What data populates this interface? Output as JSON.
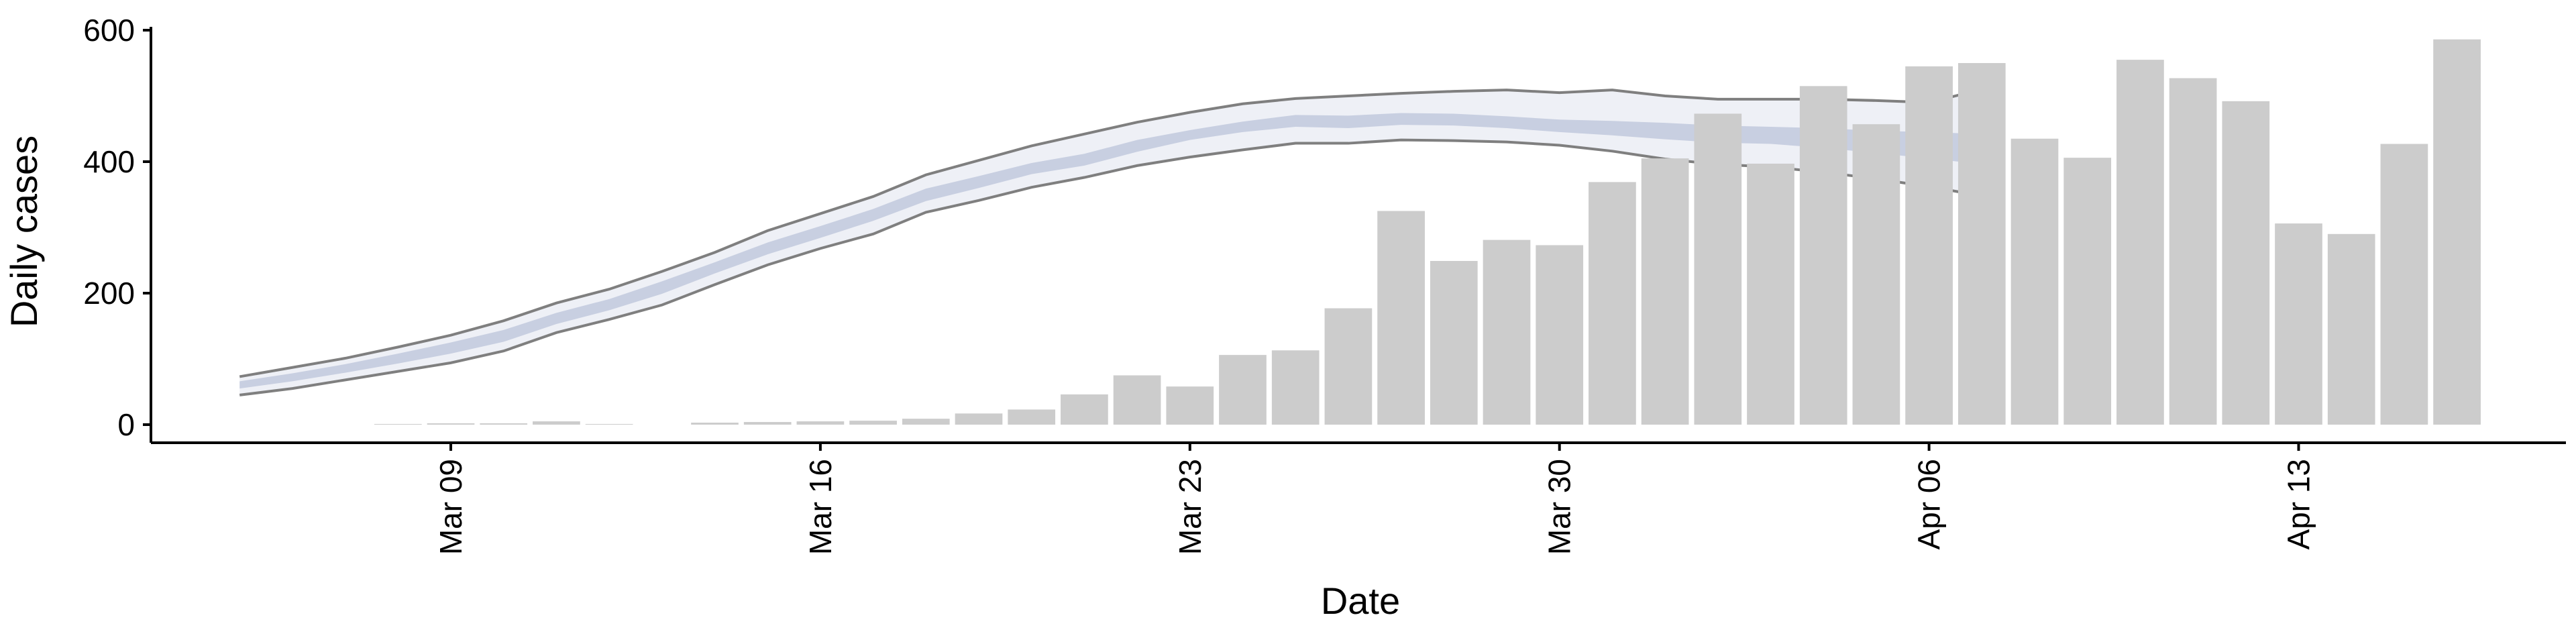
{
  "chart_data": {
    "type": "bar",
    "title": "",
    "xlabel": "Date",
    "ylabel": "Daily cases",
    "ylim": [
      0,
      600
    ],
    "y_ticks": [
      0,
      200,
      400,
      600
    ],
    "x_ticks": [
      {
        "date": "2020-03-09",
        "label": "Mar 09"
      },
      {
        "date": "2020-03-16",
        "label": "Mar 16"
      },
      {
        "date": "2020-03-23",
        "label": "Mar 23"
      },
      {
        "date": "2020-03-30",
        "label": "Mar 30"
      },
      {
        "date": "2020-04-06",
        "label": "Apr 06"
      },
      {
        "date": "2020-04-13",
        "label": "Apr 13"
      }
    ],
    "xlim": [
      "2020-03-02",
      "2020-04-20"
    ],
    "grid": false,
    "legend": "none",
    "colors": {
      "bars": "#cccccc",
      "band_outer": "#eef0f6",
      "band_inner": "#c8cfe1",
      "band_lines": "#7f7f7f",
      "axis": "#000000"
    },
    "series": [
      {
        "kind": "bar",
        "points": [
          {
            "x": "2020-03-08",
            "y": 1
          },
          {
            "x": "2020-03-09",
            "y": 2
          },
          {
            "x": "2020-03-10",
            "y": 2
          },
          {
            "x": "2020-03-11",
            "y": 5
          },
          {
            "x": "2020-03-12",
            "y": 1
          },
          {
            "x": "2020-03-13",
            "y": 0
          },
          {
            "x": "2020-03-14",
            "y": 3
          },
          {
            "x": "2020-03-15",
            "y": 4
          },
          {
            "x": "2020-03-16",
            "y": 5
          },
          {
            "x": "2020-03-17",
            "y": 6
          },
          {
            "x": "2020-03-18",
            "y": 9
          },
          {
            "x": "2020-03-19",
            "y": 17
          },
          {
            "x": "2020-03-20",
            "y": 23
          },
          {
            "x": "2020-03-21",
            "y": 46
          },
          {
            "x": "2020-03-22",
            "y": 75
          },
          {
            "x": "2020-03-23",
            "y": 58
          },
          {
            "x": "2020-03-24",
            "y": 106
          },
          {
            "x": "2020-03-25",
            "y": 113
          },
          {
            "x": "2020-03-26",
            "y": 177
          },
          {
            "x": "2020-03-27",
            "y": 325
          },
          {
            "x": "2020-03-28",
            "y": 249
          },
          {
            "x": "2020-03-29",
            "y": 281
          },
          {
            "x": "2020-03-30",
            "y": 273
          },
          {
            "x": "2020-03-31",
            "y": 369
          },
          {
            "x": "2020-04-01",
            "y": 405
          },
          {
            "x": "2020-04-02",
            "y": 473
          },
          {
            "x": "2020-04-03",
            "y": 397
          },
          {
            "x": "2020-04-04",
            "y": 515
          },
          {
            "x": "2020-04-05",
            "y": 457
          },
          {
            "x": "2020-04-06",
            "y": 545
          },
          {
            "x": "2020-04-07",
            "y": 550
          },
          {
            "x": "2020-04-08",
            "y": 435
          },
          {
            "x": "2020-04-09",
            "y": 406
          },
          {
            "x": "2020-04-10",
            "y": 555
          },
          {
            "x": "2020-04-11",
            "y": 527
          },
          {
            "x": "2020-04-12",
            "y": 492
          },
          {
            "x": "2020-04-13",
            "y": 306
          },
          {
            "x": "2020-04-14",
            "y": 290
          },
          {
            "x": "2020-04-15",
            "y": 427
          },
          {
            "x": "2020-04-16",
            "y": 586
          }
        ]
      },
      {
        "kind": "ribbon",
        "points": [
          {
            "x": "2020-03-05",
            "lo90": 45,
            "lo50": 55,
            "hi50": 66,
            "hi90": 73
          },
          {
            "x": "2020-03-06",
            "lo90": 55,
            "lo50": 66,
            "hi50": 78,
            "hi90": 87
          },
          {
            "x": "2020-03-07",
            "lo90": 68,
            "lo50": 79,
            "hi50": 92,
            "hi90": 101
          },
          {
            "x": "2020-03-08",
            "lo90": 81,
            "lo50": 93,
            "hi50": 108,
            "hi90": 118
          },
          {
            "x": "2020-03-09",
            "lo90": 94,
            "lo50": 108,
            "hi50": 125,
            "hi90": 136
          },
          {
            "x": "2020-03-10",
            "lo90": 112,
            "lo50": 126,
            "hi50": 144,
            "hi90": 158
          },
          {
            "x": "2020-03-11",
            "lo90": 140,
            "lo50": 153,
            "hi50": 170,
            "hi90": 185
          },
          {
            "x": "2020-03-12",
            "lo90": 160,
            "lo50": 174,
            "hi50": 191,
            "hi90": 206
          },
          {
            "x": "2020-03-13",
            "lo90": 182,
            "lo50": 199,
            "hi50": 218,
            "hi90": 233
          },
          {
            "x": "2020-03-14",
            "lo90": 213,
            "lo50": 230,
            "hi50": 247,
            "hi90": 262
          },
          {
            "x": "2020-03-15",
            "lo90": 243,
            "lo50": 259,
            "hi50": 277,
            "hi90": 295
          },
          {
            "x": "2020-03-16",
            "lo90": 268,
            "lo50": 284,
            "hi50": 302,
            "hi90": 321
          },
          {
            "x": "2020-03-17",
            "lo90": 290,
            "lo50": 310,
            "hi50": 328,
            "hi90": 347
          },
          {
            "x": "2020-03-18",
            "lo90": 323,
            "lo50": 340,
            "hi50": 359,
            "hi90": 380
          },
          {
            "x": "2020-03-19",
            "lo90": 341,
            "lo50": 360,
            "hi50": 378,
            "hi90": 402
          },
          {
            "x": "2020-03-20",
            "lo90": 361,
            "lo50": 381,
            "hi50": 398,
            "hi90": 424
          },
          {
            "x": "2020-03-21",
            "lo90": 376,
            "lo50": 394,
            "hi50": 412,
            "hi90": 442
          },
          {
            "x": "2020-03-22",
            "lo90": 394,
            "lo50": 415,
            "hi50": 433,
            "hi90": 460
          },
          {
            "x": "2020-03-23",
            "lo90": 407,
            "lo50": 433,
            "hi50": 448,
            "hi90": 475
          },
          {
            "x": "2020-03-24",
            "lo90": 418,
            "lo50": 445,
            "hi50": 461,
            "hi90": 488
          },
          {
            "x": "2020-03-25",
            "lo90": 428,
            "lo50": 453,
            "hi50": 471,
            "hi90": 496
          },
          {
            "x": "2020-03-26",
            "lo90": 428,
            "lo50": 451,
            "hi50": 470,
            "hi90": 500
          },
          {
            "x": "2020-03-27",
            "lo90": 433,
            "lo50": 456,
            "hi50": 474,
            "hi90": 504
          },
          {
            "x": "2020-03-28",
            "lo90": 432,
            "lo50": 455,
            "hi50": 473,
            "hi90": 507
          },
          {
            "x": "2020-03-29",
            "lo90": 430,
            "lo50": 451,
            "hi50": 469,
            "hi90": 509
          },
          {
            "x": "2020-03-30",
            "lo90": 425,
            "lo50": 445,
            "hi50": 464,
            "hi90": 505
          },
          {
            "x": "2020-03-31",
            "lo90": 416,
            "lo50": 440,
            "hi50": 462,
            "hi90": 509
          },
          {
            "x": "2020-04-01",
            "lo90": 404,
            "lo50": 434,
            "hi50": 459,
            "hi90": 500
          },
          {
            "x": "2020-04-02",
            "lo90": 396,
            "lo50": 429,
            "hi50": 455,
            "hi90": 495
          },
          {
            "x": "2020-04-03",
            "lo90": 392,
            "lo50": 427,
            "hi50": 453,
            "hi90": 495
          },
          {
            "x": "2020-04-04",
            "lo90": 384,
            "lo50": 421,
            "hi50": 451,
            "hi90": 495
          },
          {
            "x": "2020-04-05",
            "lo90": 374,
            "lo50": 413,
            "hi50": 447,
            "hi90": 493
          },
          {
            "x": "2020-04-06",
            "lo90": 362,
            "lo50": 405,
            "hi50": 445,
            "hi90": 490
          },
          {
            "x": "2020-04-07",
            "lo90": 348,
            "lo50": 396,
            "hi50": 442,
            "hi90": 510
          }
        ]
      }
    ]
  }
}
